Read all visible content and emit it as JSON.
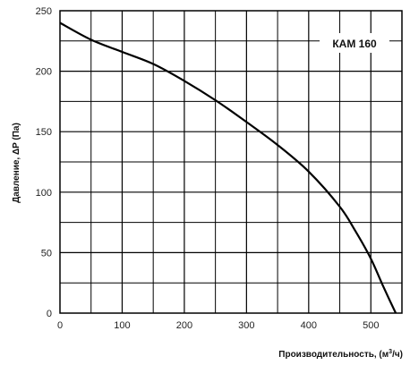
{
  "chart_data": {
    "type": "line",
    "xlabel": "Производительность, (м",
    "xlabel_sup": "3",
    "xlabel_tail": "/ч)",
    "ylabel": "Давление, ΔP (Па)",
    "xlim": [
      0,
      550
    ],
    "ylim": [
      0,
      250
    ],
    "x_ticks": [
      "0",
      "100",
      "200",
      "300",
      "400",
      "500"
    ],
    "y_ticks": [
      "0",
      "50",
      "100",
      "150",
      "200",
      "250"
    ],
    "grid": true,
    "legend_position": "top-right",
    "series": [
      {
        "name": "КАМ 160",
        "color": "#000000",
        "points": [
          [
            0,
            240
          ],
          [
            50,
            226
          ],
          [
            100,
            216
          ],
          [
            150,
            206
          ],
          [
            200,
            192
          ],
          [
            250,
            176
          ],
          [
            300,
            158
          ],
          [
            350,
            139
          ],
          [
            400,
            117
          ],
          [
            450,
            88
          ],
          [
            475,
            68
          ],
          [
            500,
            45
          ],
          [
            520,
            22
          ],
          [
            540,
            0
          ]
        ]
      }
    ]
  }
}
